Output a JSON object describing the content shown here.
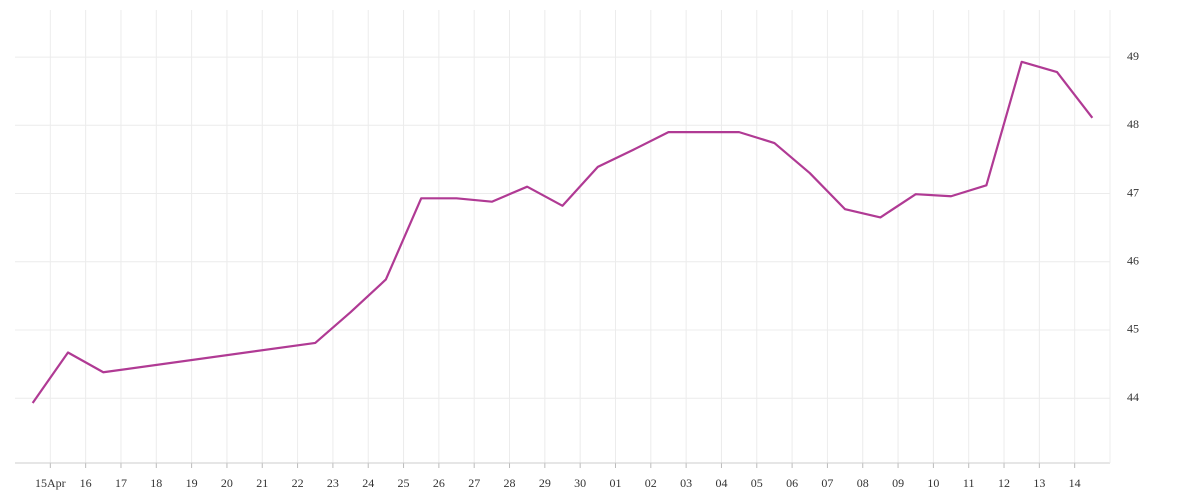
{
  "chart_data": {
    "type": "line",
    "x": [
      -0.5,
      0.5,
      1.5,
      7.5,
      8.5,
      9.5,
      10.5,
      11.5,
      12.5,
      13.5,
      14.5,
      15.5,
      16.5,
      17.5,
      18.5,
      19.5,
      20.5,
      21.5,
      22.5,
      23.5,
      24.5,
      25.5,
      26.5,
      27.5,
      28.5,
      29.5
    ],
    "series": [
      {
        "color": "#b03a94",
        "values": [
          43.93,
          44.67,
          44.38,
          44.81,
          45.26,
          45.74,
          46.93,
          46.93,
          46.88,
          47.1,
          46.82,
          47.39,
          47.64,
          47.9,
          47.9,
          47.9,
          47.74,
          47.3,
          46.77,
          46.65,
          46.99,
          46.96,
          47.12,
          48.93,
          48.78,
          48.11
        ]
      }
    ],
    "xlim": [
      -1,
      30
    ],
    "xticks": [
      {
        "value": 0,
        "label": "15Apr"
      },
      {
        "value": 1,
        "label": "16"
      },
      {
        "value": 2,
        "label": "17"
      },
      {
        "value": 3,
        "label": "18"
      },
      {
        "value": 4,
        "label": "19"
      },
      {
        "value": 5,
        "label": "20"
      },
      {
        "value": 6,
        "label": "21"
      },
      {
        "value": 7,
        "label": "22"
      },
      {
        "value": 8,
        "label": "23"
      },
      {
        "value": 9,
        "label": "24"
      },
      {
        "value": 10,
        "label": "25"
      },
      {
        "value": 11,
        "label": "26"
      },
      {
        "value": 12,
        "label": "27"
      },
      {
        "value": 13,
        "label": "28"
      },
      {
        "value": 14,
        "label": "29"
      },
      {
        "value": 15,
        "label": "30"
      },
      {
        "value": 16,
        "label": "01"
      },
      {
        "value": 17,
        "label": "02"
      },
      {
        "value": 18,
        "label": "03"
      },
      {
        "value": 19,
        "label": "04"
      },
      {
        "value": 20,
        "label": "05"
      },
      {
        "value": 21,
        "label": "06"
      },
      {
        "value": 22,
        "label": "07"
      },
      {
        "value": 23,
        "label": "08"
      },
      {
        "value": 24,
        "label": "09"
      },
      {
        "value": 25,
        "label": "10"
      },
      {
        "value": 26,
        "label": "11"
      },
      {
        "value": 27,
        "label": "12"
      },
      {
        "value": 28,
        "label": "13"
      },
      {
        "value": 29,
        "label": "14"
      }
    ],
    "ylim": [
      43.05,
      49.69
    ],
    "yticks": [
      44,
      45,
      46,
      47,
      48,
      49
    ],
    "grid": true
  }
}
